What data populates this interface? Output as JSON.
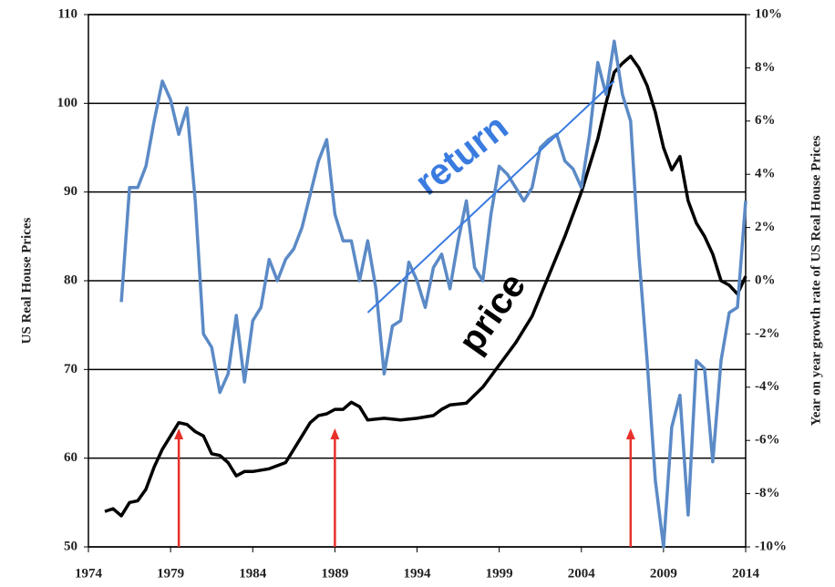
{
  "chart_data": {
    "type": "line",
    "y_label": "US Real House Prices",
    "y2_label": "Year on year growth rate of US Real House Prices",
    "xlim": [
      1974,
      2014
    ],
    "xticks": [
      1974,
      1979,
      1984,
      1989,
      1994,
      1999,
      2004,
      2009,
      2014
    ],
    "ylim": [
      50,
      110
    ],
    "yticks": [
      50,
      60,
      70,
      80,
      90,
      100,
      110
    ],
    "y2lim": [
      -10,
      10
    ],
    "y2ticks": [
      {
        "value": -10,
        "label": "-10%"
      },
      {
        "value": -8,
        "label": "-8%"
      },
      {
        "value": -6,
        "label": "-6%"
      },
      {
        "value": -4,
        "label": "-4%"
      },
      {
        "value": -2,
        "label": "-2%"
      },
      {
        "value": 0,
        "label": "0%"
      },
      {
        "value": 2,
        "label": "2%"
      },
      {
        "value": 4,
        "label": "4%"
      },
      {
        "value": 6,
        "label": "6%"
      },
      {
        "value": 8,
        "label": "8%"
      },
      {
        "value": 10,
        "label": "10%"
      }
    ],
    "grid": true,
    "series": [
      {
        "name": "price",
        "color": "#000000",
        "x": [
          1975,
          1975.5,
          1976,
          1976.5,
          1977,
          1977.5,
          1978,
          1978.5,
          1979,
          1979.5,
          1980,
          1980.5,
          1981,
          1981.5,
          1982,
          1982.5,
          1983,
          1983.5,
          1984,
          1985,
          1986,
          1986.5,
          1987,
          1987.5,
          1988,
          1988.5,
          1989,
          1989.5,
          1990,
          1990.5,
          1991,
          1992,
          1993,
          1994,
          1995,
          1995.5,
          1996,
          1997,
          1998,
          1999,
          2000,
          2001,
          2002,
          2003,
          2004,
          2005,
          2005.5,
          2006,
          2006.5,
          2007,
          2007.5,
          2008,
          2008.5,
          2009,
          2009.5,
          2010,
          2010.5,
          2011,
          2011.5,
          2012,
          2012.5,
          2013,
          2013.5,
          2014
        ],
        "values": [
          54,
          54.3,
          53.5,
          55,
          55.2,
          56.5,
          59,
          61,
          62.5,
          64,
          63.8,
          63,
          62.5,
          60.5,
          60.3,
          59.5,
          58,
          58.5,
          58.5,
          58.8,
          59.5,
          61,
          62.5,
          64,
          64.8,
          65,
          65.5,
          65.5,
          66.3,
          65.8,
          64.3,
          64.5,
          64.3,
          64.5,
          64.8,
          65.5,
          66,
          66.2,
          68,
          70.5,
          73,
          76,
          80.5,
          85,
          90,
          96,
          100,
          103.5,
          104.5,
          105.3,
          104,
          102,
          99,
          95,
          92.5,
          94,
          89,
          86.5,
          85,
          83,
          80,
          79.5,
          78.5,
          80.5
        ]
      },
      {
        "name": "return",
        "color": "#5b8ac6",
        "axis": "y2",
        "x": [
          1976,
          1976.5,
          1977,
          1977.5,
          1978,
          1978.5,
          1979,
          1979.5,
          1980,
          1980.5,
          1981,
          1981.5,
          1982,
          1982.5,
          1983,
          1983.5,
          1984,
          1984.5,
          1985,
          1985.5,
          1986,
          1986.5,
          1987,
          1988,
          1988.5,
          1989,
          1989.5,
          1990,
          1990.5,
          1991,
          1991.5,
          1992,
          1992.5,
          1993,
          1993.5,
          1994,
          1994.5,
          1995,
          1995.5,
          1996,
          1996.5,
          1997,
          1997.5,
          1998,
          1998.5,
          1999,
          1999.5,
          2000,
          2000.5,
          2001,
          2001.5,
          2002,
          2002.5,
          2003,
          2003.5,
          2004,
          2004.5,
          2005,
          2005.5,
          2006,
          2006.5,
          2007,
          2007.5,
          2008,
          2008.5,
          2009,
          2009.5,
          2010,
          2010.5,
          2011,
          2011.5,
          2012,
          2012.5,
          2013,
          2013.5,
          2014
        ],
        "values": [
          -0.8,
          3.5,
          3.5,
          4.3,
          6,
          7.5,
          6.8,
          5.5,
          6.5,
          3,
          -2,
          -2.5,
          -4.2,
          -3.5,
          -1.3,
          -3.8,
          -1.5,
          -1,
          0.8,
          0,
          0.8,
          1.2,
          2,
          4.5,
          5.3,
          2.5,
          1.5,
          1.5,
          0,
          1.5,
          -0.3,
          -3.5,
          -1.7,
          -1.5,
          0.7,
          0,
          -1,
          0.5,
          1,
          -0.3,
          1.5,
          3,
          0.5,
          0,
          2.5,
          4.3,
          4,
          3.5,
          3,
          3.5,
          5,
          5.3,
          5.5,
          4.5,
          4.2,
          3.5,
          5.5,
          8.2,
          7,
          9,
          7,
          6,
          1,
          -3,
          -7.5,
          -10,
          -5.5,
          -4.3,
          -8.8,
          -3,
          -3.3,
          -6.8,
          -3,
          -1.2,
          -1,
          3
        ]
      }
    ],
    "trend_line": {
      "axis": "y2",
      "color": "#3a7be0",
      "x": [
        1991,
        2006
      ],
      "values": [
        -1.2,
        7.5
      ]
    },
    "markers": {
      "color": "#e8302a",
      "x": [
        1979.5,
        1989,
        2007
      ]
    }
  }
}
